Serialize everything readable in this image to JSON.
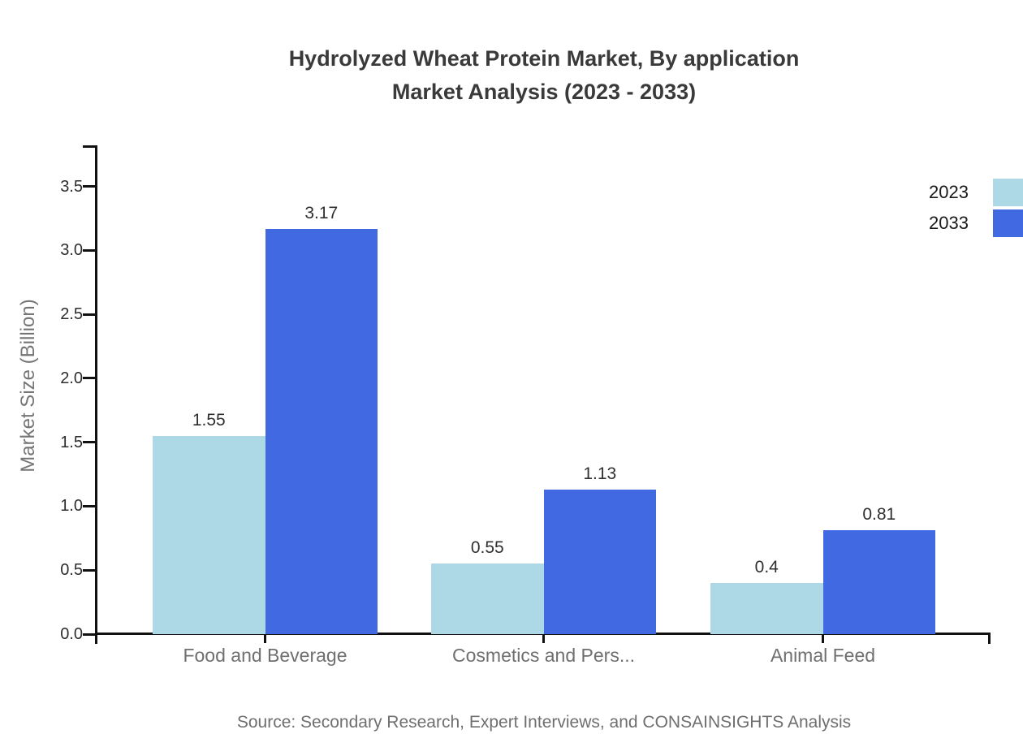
{
  "page": {
    "background": "#ffffff"
  },
  "title": {
    "line1": "Hydrolyzed Wheat Protein Market, By application",
    "line2": "Market Analysis (2023 - 2033)"
  },
  "source_note": "Source: Secondary Research, Expert Interviews, and CONSAINSIGHTS Analysis",
  "chart_data": {
    "type": "bar",
    "title": "Hydrolyzed Wheat Protein Market, By application Market Analysis (2023 - 2033)",
    "categories": [
      "Food and Beverage",
      "Cosmetics and Pers...",
      "Animal Feed"
    ],
    "series": [
      {
        "name": "2023",
        "color": "#ADD8E6",
        "values": [
          1.55,
          0.55,
          0.4
        ]
      },
      {
        "name": "2033",
        "color": "#4169E1",
        "values": [
          3.17,
          1.13,
          0.81
        ]
      }
    ],
    "xlabel": "",
    "ylabel": "Market Size (Billion)",
    "ylim": [
      0,
      3.5
    ],
    "ytick_step": 0.5,
    "ytick_labels": [
      "0.0",
      "0.5",
      "1.0",
      "1.5",
      "2.0",
      "2.5",
      "3.0",
      "3.5"
    ],
    "value_labels": [
      "1.55",
      "3.17",
      "0.55",
      "1.13",
      "0.4",
      "0.81"
    ],
    "grid": false,
    "legend_position": "top-right",
    "axis_color": "#111111",
    "category_label_color": "#6f6f6f",
    "tick_label_color": "#2d2d2d"
  }
}
